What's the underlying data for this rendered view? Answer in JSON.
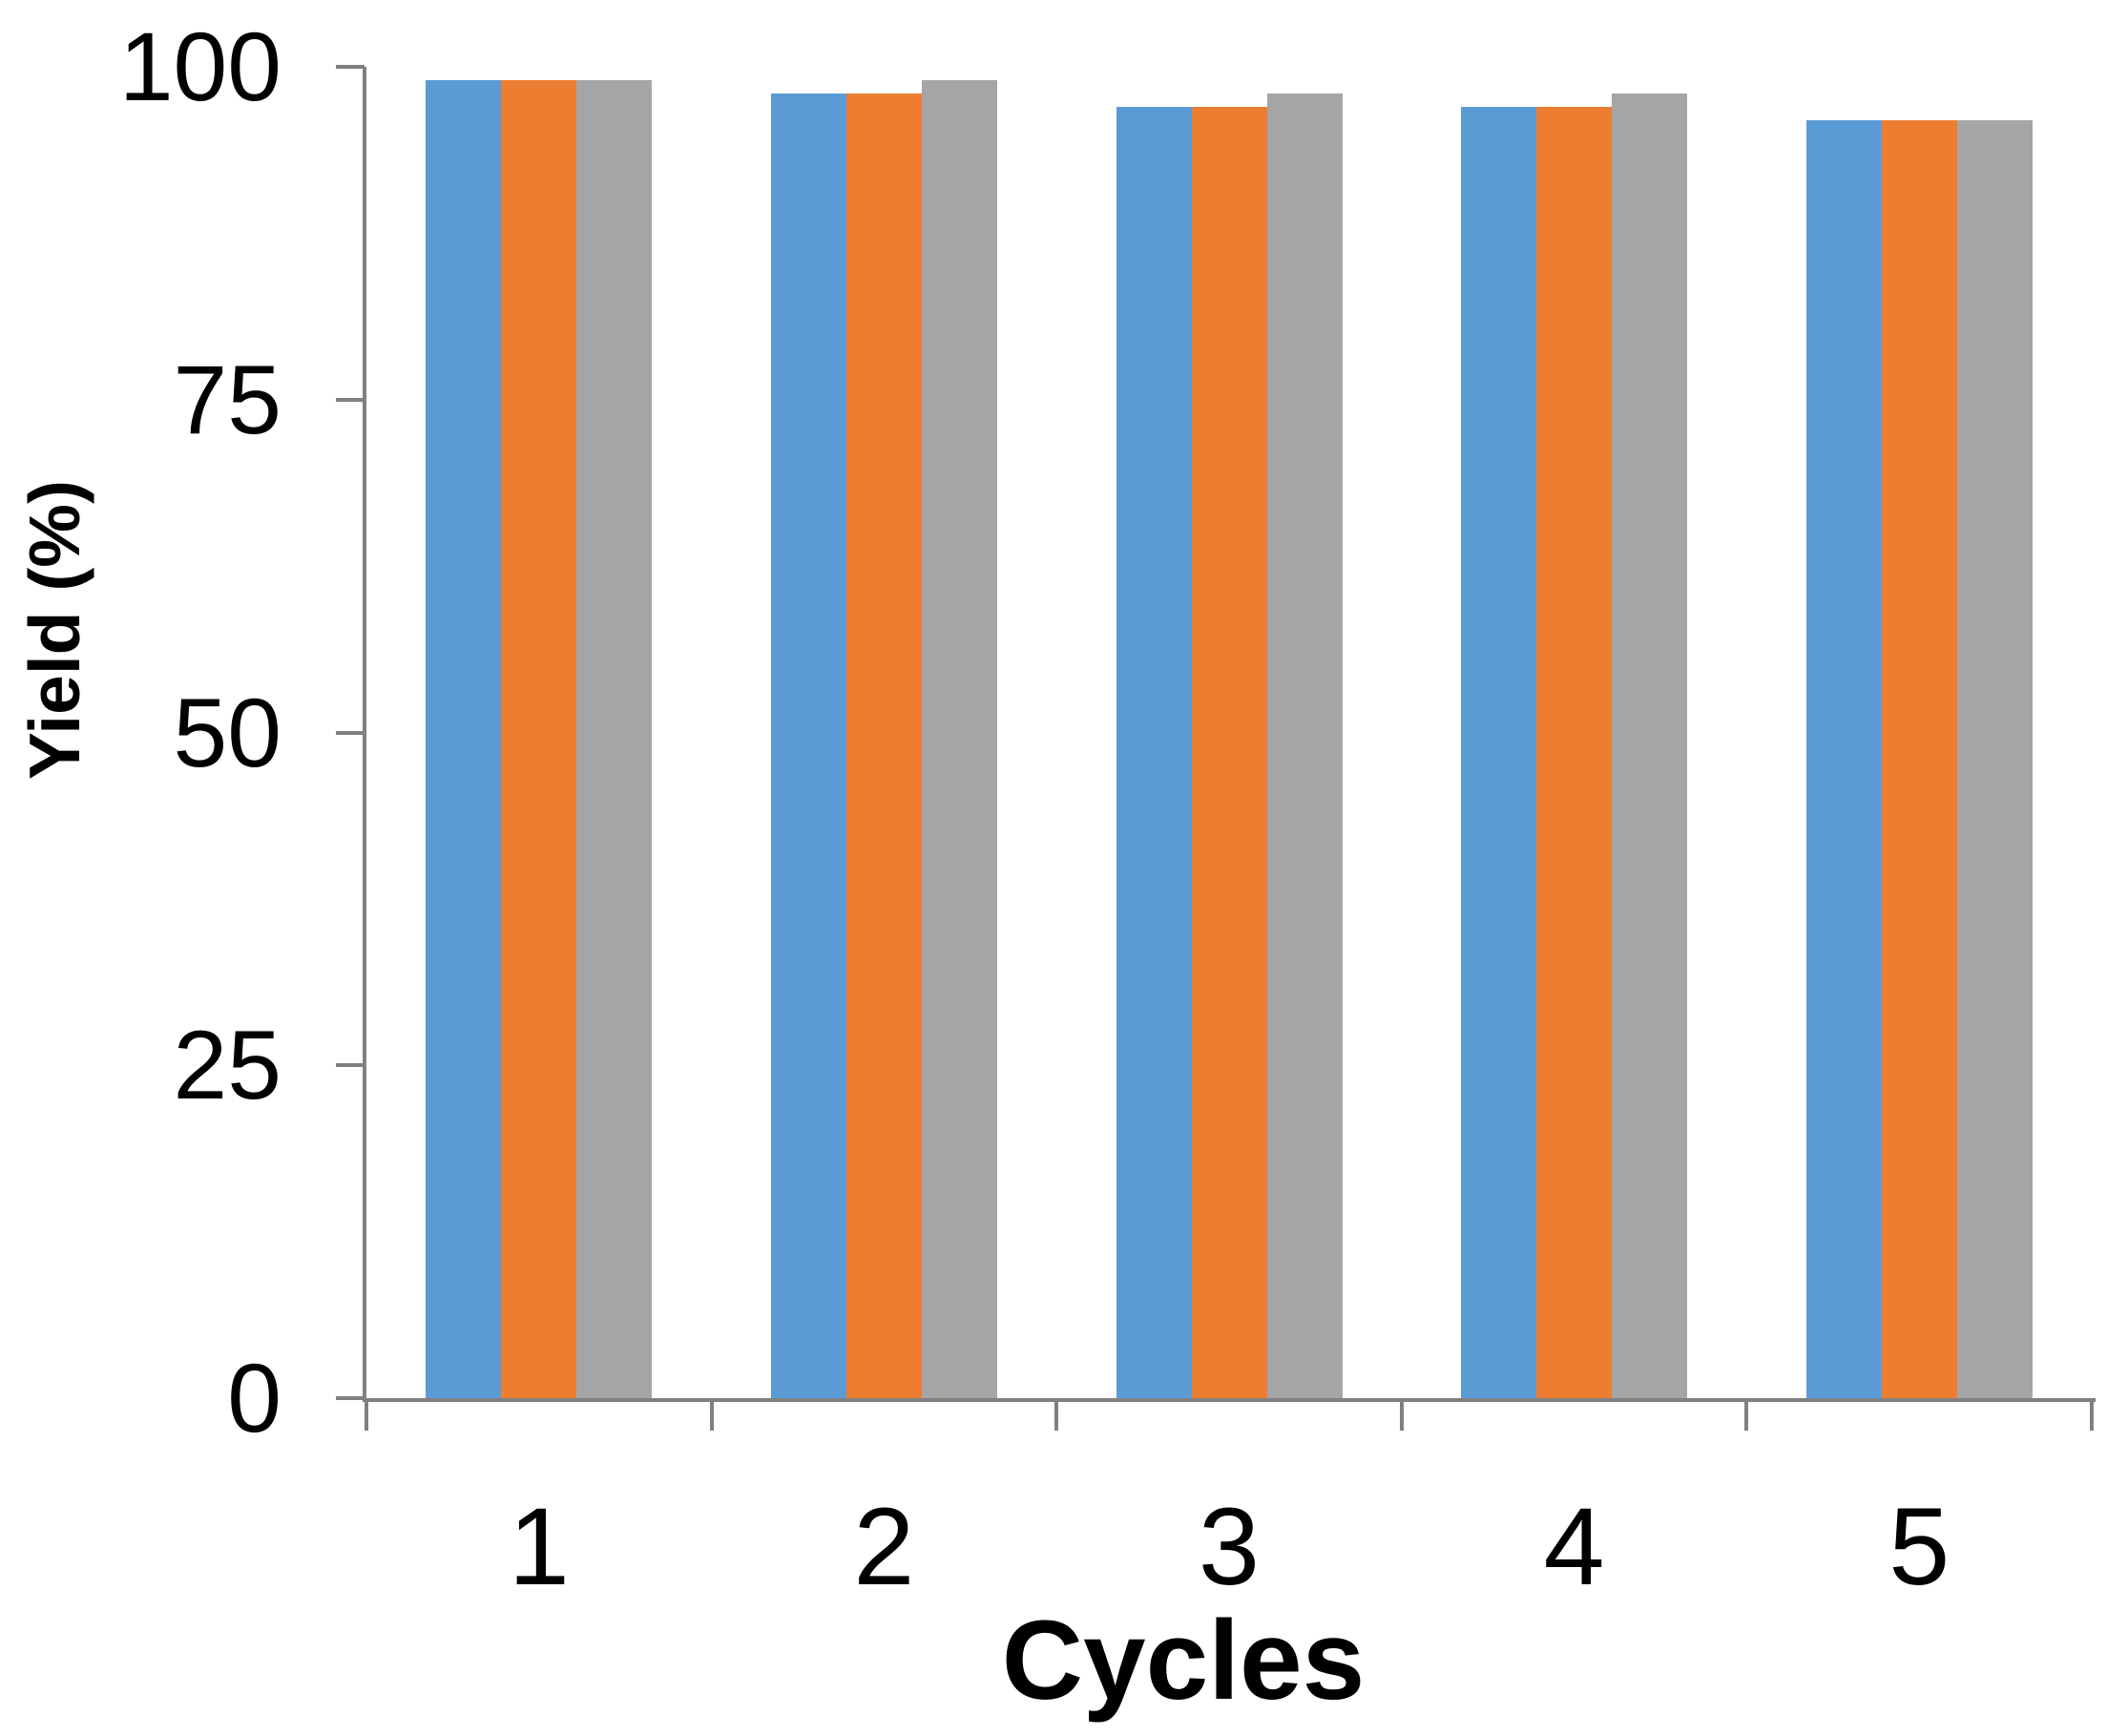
{
  "chart_data": {
    "type": "bar",
    "title": "",
    "xlabel": "Cycles",
    "ylabel": "Yield (%)",
    "categories": [
      "1",
      "2",
      "3",
      "4",
      "5"
    ],
    "series": [
      {
        "name": "blue",
        "color": "#5B9BD5",
        "values": [
          99,
          98,
          97,
          97,
          96
        ]
      },
      {
        "name": "orange",
        "color": "#ED7D31",
        "values": [
          99,
          98,
          97,
          97,
          96
        ]
      },
      {
        "name": "gray",
        "color": "#A5A5A5",
        "values": [
          99,
          99,
          98,
          98,
          96
        ]
      }
    ],
    "ylim": [
      0,
      100
    ],
    "yticks": [
      0,
      25,
      50,
      75,
      100
    ],
    "grid": false,
    "legend_position": "none",
    "axis_color": "#808080",
    "text_color": "#000000",
    "background_color": "#FFFFFF"
  }
}
